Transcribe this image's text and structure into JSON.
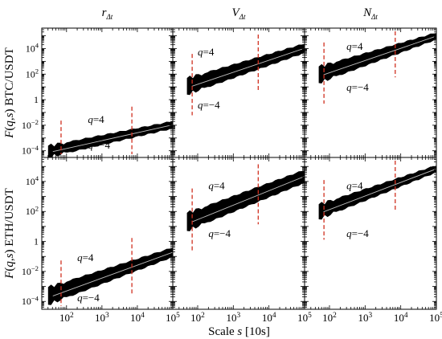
{
  "figure": {
    "xlabel": "Scale s [10s]",
    "ylabel_prefix": "F(q,s)",
    "ylabel_italic": "F",
    "ylabel_args": "(q,s)"
  },
  "chart_data": {
    "type": "line",
    "x_scale": "log",
    "y_scale": "log",
    "xlim": [
      20,
      100000
    ],
    "ylim": [
      3e-05,
      400000
    ],
    "x_ticks": [
      100,
      1000,
      10000,
      100000
    ],
    "x_tick_labels": [
      "10^2",
      "10^3",
      "10^4",
      "10^5"
    ],
    "y_ticks": [
      0.0001,
      0.01,
      1,
      100,
      10000
    ],
    "y_tick_labels": [
      "10^-4",
      "10^-2",
      "1",
      "10^2",
      "10^4"
    ],
    "columns": [
      {
        "label": "r",
        "subscript": "Δt"
      },
      {
        "label": "V",
        "subscript": "Δt"
      },
      {
        "label": "N",
        "subscript": "Δt"
      }
    ],
    "rows": [
      {
        "label": "BTC/USDT"
      },
      {
        "label": "ETH/USDT"
      }
    ],
    "panels": [
      {
        "row": 0,
        "col": 0,
        "xmin": 30,
        "q4_start": 0.00025,
        "q4_end": 0.021,
        "qm4_start": 3e-05,
        "qm4_end": 0.0055,
        "vlines": [
          70,
          7000
        ],
        "label_q4": "q=4",
        "label_qm4": "q=−4",
        "q4_label_pos": [
          400,
          0.015
        ],
        "qm4_label_pos": [
          400,
          0.00015
        ]
      },
      {
        "row": 0,
        "col": 1,
        "xmin": 50,
        "q4_start": 50,
        "q4_end": 25000,
        "qm4_start": 2.5,
        "qm4_end": 4500,
        "vlines": [
          70,
          5000
        ],
        "label_q4": "q=4",
        "label_qm4": "q=−4",
        "q4_label_pos": [
          100,
          3000
        ],
        "qm4_label_pos": [
          100,
          0.2
        ]
      },
      {
        "row": 0,
        "col": 2,
        "xmin": 50,
        "q4_start": 400,
        "q4_end": 180000,
        "qm4_start": 20,
        "qm4_end": 50000,
        "vlines": [
          70,
          7000
        ],
        "label_q4": "q=4",
        "label_qm4": "q=−4",
        "q4_label_pos": [
          300,
          8000
        ],
        "qm4_label_pos": [
          300,
          5
        ]
      },
      {
        "row": 1,
        "col": 0,
        "xmin": 30,
        "q4_start": 0.0009,
        "q4_end": 0.4,
        "qm4_start": 6e-05,
        "qm4_end": 0.09,
        "vlines": [
          70,
          7000
        ],
        "label_q4": "q=4",
        "label_qm4": "q=−4",
        "q4_label_pos": [
          200,
          0.05
        ],
        "qm4_label_pos": [
          200,
          0.0001
        ]
      },
      {
        "row": 1,
        "col": 1,
        "xmin": 50,
        "q4_start": 80,
        "q4_end": 60000,
        "qm4_start": 5,
        "qm4_end": 8000,
        "vlines": [
          70,
          5000
        ],
        "label_q4": "q=4",
        "label_qm4": "q=−4",
        "q4_label_pos": [
          200,
          3000
        ],
        "qm4_label_pos": [
          200,
          2
        ]
      },
      {
        "row": 1,
        "col": 2,
        "xmin": 50,
        "q4_start": 300,
        "q4_end": 120000,
        "qm4_start": 30,
        "qm4_end": 40000,
        "vlines": [
          70,
          7000
        ],
        "label_q4": "q=4",
        "label_qm4": "q=−4",
        "q4_label_pos": [
          300,
          3000
        ],
        "qm4_label_pos": [
          300,
          2
        ]
      }
    ]
  }
}
